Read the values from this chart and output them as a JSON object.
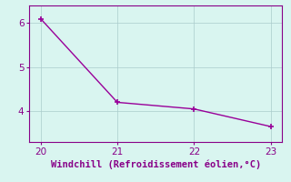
{
  "x": [
    20,
    21,
    22,
    23
  ],
  "y": [
    6.1,
    4.2,
    4.05,
    3.65
  ],
  "line_color": "#990099",
  "marker": "+",
  "marker_size": 5,
  "marker_ew": 1.2,
  "bg_color": "#d9f5f0",
  "grid_color": "#aacccc",
  "axis_color": "#880088",
  "xlabel": "Windchill (Refroidissement éolien,°C)",
  "xlabel_fontsize": 7.5,
  "xlim": [
    19.85,
    23.15
  ],
  "ylim": [
    3.3,
    6.4
  ],
  "xticks": [
    20,
    21,
    22,
    23
  ],
  "yticks": [
    4,
    5,
    6
  ],
  "tick_fontsize": 7.5,
  "linewidth": 1.0,
  "linestyle": "-"
}
